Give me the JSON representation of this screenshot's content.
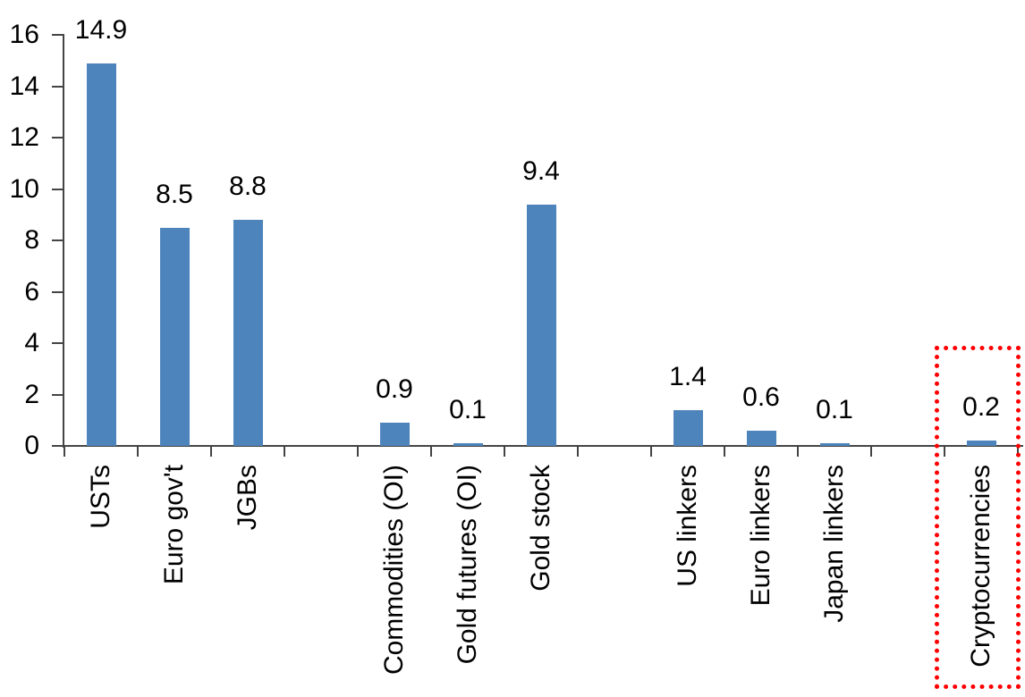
{
  "chart_data": {
    "type": "bar",
    "title": "",
    "categories": [
      "USTs",
      "Euro gov't",
      "JGBs",
      "Commodities (OI)",
      "Gold futures (OI)",
      "Gold stock",
      "US linkers",
      "Euro linkers",
      "Japan linkers",
      "Cryptocurrencies"
    ],
    "values": [
      14.9,
      8.5,
      8.8,
      0.9,
      0.1,
      9.4,
      1.4,
      0.6,
      0.1,
      0.2
    ],
    "data_labels": [
      "14.9",
      "8.5",
      "8.8",
      "0.9",
      "0.1",
      "9.4",
      "1.4",
      "0.6",
      "0.1",
      "0.2"
    ],
    "slot_indices": [
      0,
      1,
      2,
      4,
      5,
      6,
      8,
      9,
      10,
      12
    ],
    "total_slots": 13,
    "xlabel": "",
    "ylabel": "",
    "ylim": [
      0,
      16
    ],
    "yticks": [
      0,
      2,
      4,
      6,
      8,
      10,
      12,
      14,
      16
    ],
    "ytick_labels": [
      "0",
      "2",
      "4",
      "6",
      "8",
      "10",
      "12",
      "14",
      "16"
    ],
    "grid": false,
    "legend": false,
    "category_label_rotation": -90,
    "bar_color": "#4E84BC",
    "axis_color": "#444444",
    "text_color": "#000000",
    "highlight": {
      "target": "Cryptocurrencies",
      "style": "dotted-outline-box",
      "color": "#FF0000"
    }
  }
}
